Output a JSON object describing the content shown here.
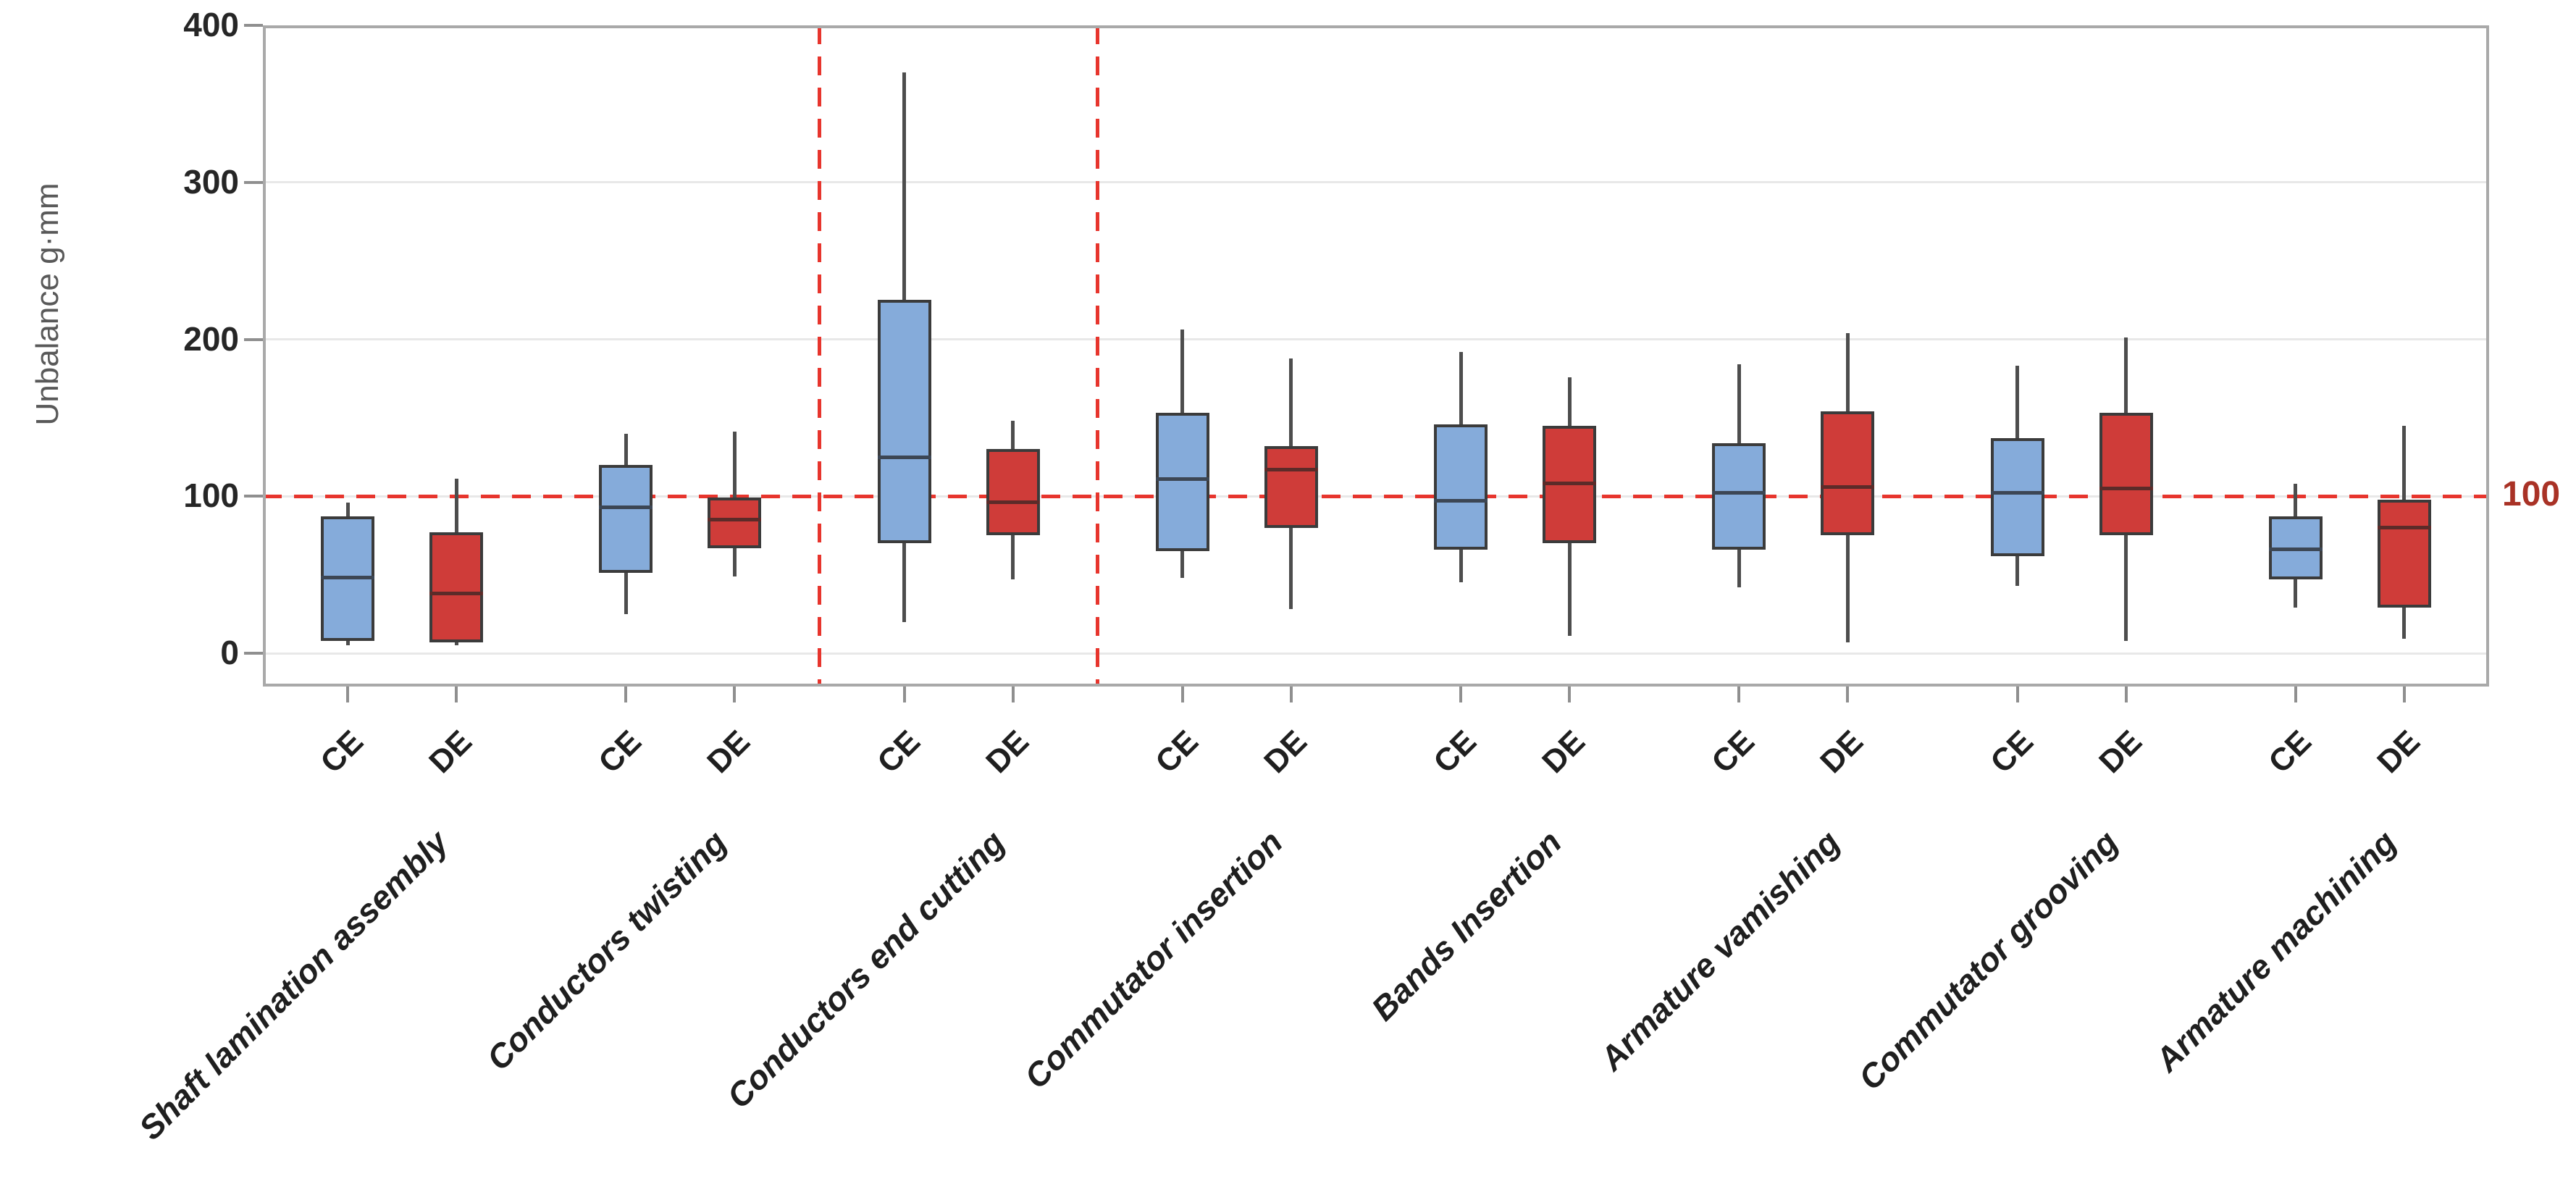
{
  "chart_data": {
    "type": "boxplot",
    "title": "",
    "ylabel": "Unbalance g·mm",
    "xlabel": "",
    "ylim": [
      0,
      400
    ],
    "yticks": [
      0,
      100,
      200,
      300,
      400
    ],
    "grid": "horizontal",
    "sub_labels": [
      "CE",
      "DE"
    ],
    "reference_line": {
      "value": 100,
      "label": "100",
      "style": "dashed"
    },
    "vline_boundaries": [
      2,
      3
    ],
    "vline_note": "dashed vertical markers bracket the Conductors end cutting group",
    "groups": [
      {
        "label": "Shaft lamination assembly",
        "CE": {
          "low": 5,
          "q1": 8,
          "median": 48,
          "q3": 87,
          "high": 96
        },
        "DE": {
          "low": 5,
          "q1": 7,
          "median": 38,
          "q3": 77,
          "high": 111
        }
      },
      {
        "label": "Conductors twisting",
        "CE": {
          "low": 25,
          "q1": 51,
          "median": 93,
          "q3": 120,
          "high": 140
        },
        "DE": {
          "low": 49,
          "q1": 67,
          "median": 85,
          "q3": 99,
          "high": 141
        }
      },
      {
        "label": "Conductors end cutting",
        "CE": {
          "low": 20,
          "q1": 70,
          "median": 125,
          "q3": 225,
          "high": 370
        },
        "DE": {
          "low": 47,
          "q1": 75,
          "median": 96,
          "q3": 130,
          "high": 148
        }
      },
      {
        "label": "Commutator insertion",
        "CE": {
          "low": 48,
          "q1": 65,
          "median": 111,
          "q3": 153,
          "high": 206
        },
        "DE": {
          "low": 28,
          "q1": 80,
          "median": 117,
          "q3": 132,
          "high": 188
        }
      },
      {
        "label": "Bands Insertion",
        "CE": {
          "low": 45,
          "q1": 66,
          "median": 97,
          "q3": 146,
          "high": 192
        },
        "DE": {
          "low": 11,
          "q1": 70,
          "median": 108,
          "q3": 145,
          "high": 176
        }
      },
      {
        "label": "Armature vamishing",
        "CE": {
          "low": 42,
          "q1": 66,
          "median": 102,
          "q3": 134,
          "high": 184
        },
        "DE": {
          "low": 7,
          "q1": 75,
          "median": 106,
          "q3": 154,
          "high": 204
        }
      },
      {
        "label": "Commutator grooving",
        "CE": {
          "low": 43,
          "q1": 62,
          "median": 102,
          "q3": 137,
          "high": 183
        },
        "DE": {
          "low": 8,
          "q1": 75,
          "median": 105,
          "q3": 153,
          "high": 201
        }
      },
      {
        "label": "Armature machining",
        "CE": {
          "low": 29,
          "q1": 47,
          "median": 66,
          "q3": 87,
          "high": 108
        },
        "DE": {
          "low": 9,
          "q1": 29,
          "median": 80,
          "q3": 98,
          "high": 145
        }
      }
    ],
    "colors": {
      "ce_fill": "#85abda",
      "de_fill": "#cf3c39",
      "box_border": "#3b3b3b",
      "median_ce": "#3c4654",
      "median_de": "#5c2b29",
      "whisker": "#4d4d4d",
      "ref_line": "#e7352d",
      "ref_label": "#a93226",
      "frame": "#a9a9a9",
      "grid": "#e8e8e8",
      "tick": "#8f8f8f",
      "text": "#262626",
      "ylabel_color": "#595959"
    }
  }
}
